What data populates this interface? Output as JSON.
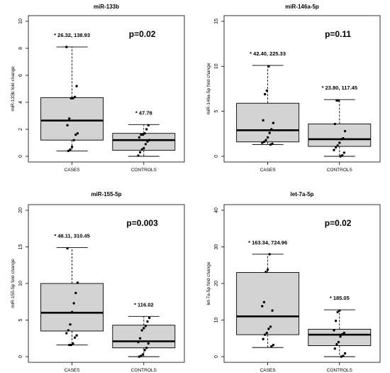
{
  "chart_data": [
    {
      "type": "boxplot",
      "title": "miR-133b",
      "ylabel": "miR-133b fold change",
      "ylim": [
        0,
        10
      ],
      "yticks": [
        0,
        2,
        4,
        6,
        8,
        10
      ],
      "categories": [
        "CASES",
        "CONTROLS"
      ],
      "p_value": "p=0.02",
      "boxes": [
        {
          "whisker_low": 0.4,
          "q1": 1.2,
          "median": 2.65,
          "q3": 4.35,
          "whisker_high": 8.1,
          "annotation": "* 26.32, 138.93",
          "points": [
            8.1,
            5.2,
            4.4,
            4.3,
            4.3,
            2.8,
            2.3,
            1.7,
            1.6,
            1.2,
            0.7,
            0.5,
            0.4
          ]
        },
        {
          "whisker_low": 0.0,
          "q1": 0.45,
          "median": 1.2,
          "q3": 1.7,
          "whisker_high": 2.35,
          "annotation": "* 47.78",
          "points": [
            2.3,
            2.0,
            1.7,
            1.6,
            1.6,
            1.4,
            1.2,
            1.1,
            0.9,
            0.6,
            0.5,
            0.3,
            0.05
          ]
        }
      ]
    },
    {
      "type": "boxplot",
      "title": "miR-146a-5p",
      "ylabel": "miR-146a-5p fold change",
      "ylim": [
        0,
        15
      ],
      "yticks": [
        0,
        5,
        10,
        15
      ],
      "categories": [
        "CASES",
        "CONTROLS"
      ],
      "p_value": "p=0.11",
      "boxes": [
        {
          "whisker_low": 1.3,
          "q1": 1.6,
          "median": 2.9,
          "q3": 5.9,
          "whisker_high": 10.1,
          "annotation": "* 42.40, 225.33",
          "points": [
            10.0,
            7.3,
            6.9,
            4.0,
            3.7,
            3.0,
            2.6,
            2.1,
            1.8,
            1.6,
            1.5,
            1.4,
            1.3
          ]
        },
        {
          "whisker_low": 0.0,
          "q1": 1.1,
          "median": 1.9,
          "q3": 3.6,
          "whisker_high": 6.3,
          "annotation": "* 23.80, 117.45",
          "points": [
            6.2,
            6.2,
            3.6,
            2.8,
            2.0,
            1.9,
            1.5,
            1.2,
            1.0,
            0.7,
            0.4,
            0.1,
            0.0
          ]
        }
      ]
    },
    {
      "type": "boxplot",
      "title": "miR-155-5p",
      "ylabel": "miR-155-5p fold change",
      "ylim": [
        0,
        20
      ],
      "yticks": [
        0,
        5,
        10,
        15,
        20
      ],
      "categories": [
        "CASES",
        "CONTROLS"
      ],
      "p_value": "p=0.003",
      "boxes": [
        {
          "whisker_low": 1.6,
          "q1": 3.5,
          "median": 6.0,
          "q3": 10.0,
          "whisker_high": 14.9,
          "annotation": "* 48.11, 310.45",
          "points": [
            14.8,
            10.1,
            8.7,
            7.3,
            6.1,
            4.4,
            3.6,
            3.2,
            2.9,
            2.6,
            1.8,
            1.6,
            1.6
          ]
        },
        {
          "whisker_low": 0.0,
          "q1": 1.2,
          "median": 2.1,
          "q3": 4.3,
          "whisker_high": 5.5,
          "annotation": "* 116.02",
          "points": [
            5.3,
            4.8,
            4.2,
            3.9,
            3.6,
            2.5,
            2.0,
            1.8,
            1.2,
            0.9,
            0.3,
            0.1,
            0.0
          ]
        }
      ]
    },
    {
      "type": "boxplot",
      "title": "let-7a-5p",
      "ylabel": "let-7a-5p fold change",
      "ylim": [
        0,
        40
      ],
      "yticks": [
        0,
        10,
        20,
        30,
        40
      ],
      "categories": [
        "CASES",
        "CONTROLS"
      ],
      "p_value": "p=0.02",
      "boxes": [
        {
          "whisker_low": 2.5,
          "q1": 6.0,
          "median": 11.0,
          "q3": 23.0,
          "whisker_high": 28.0,
          "annotation": "* 163.34, 724.96",
          "points": [
            28.0,
            23.8,
            23.2,
            14.9,
            13.8,
            12.6,
            8.2,
            7.6,
            6.5,
            6.0,
            4.8,
            3.2,
            2.8
          ]
        },
        {
          "whisker_low": 0.0,
          "q1": 3.0,
          "median": 6.0,
          "q3": 7.5,
          "whisker_high": 12.8,
          "annotation": "* 185.05",
          "points": [
            12.6,
            12.2,
            9.8,
            7.2,
            6.5,
            6.1,
            5.5,
            4.0,
            3.4,
            2.2,
            0.9,
            0.2,
            0.0
          ]
        }
      ]
    }
  ]
}
